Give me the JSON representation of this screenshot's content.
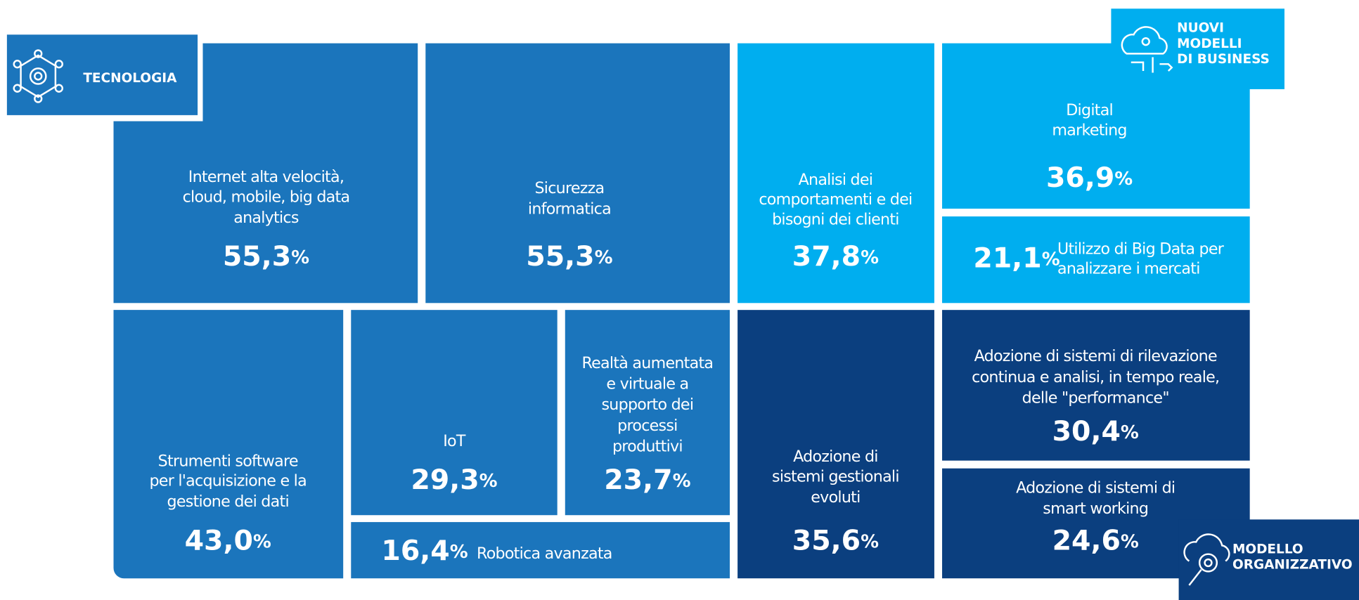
{
  "badges": [
    {
      "lines": [
        "TECNOLOGIA"
      ]
    },
    {
      "lines": [
        "NUOVI",
        "MODELLI",
        "DI BUSINESS"
      ]
    },
    {
      "lines": [
        "MODELLO",
        "ORGANIZZATIVO"
      ]
    }
  ],
  "tiles": [
    {
      "label": [
        "Internet alta velocità,",
        "cloud, mobile, big data",
        "analytics"
      ],
      "value": "55,3",
      "unit": "%"
    },
    {
      "label": [
        "Sicurezza",
        "informatica"
      ],
      "value": "55,3",
      "unit": "%"
    },
    {
      "label": [
        "Analisi dei",
        "comportamenti e dei",
        "bisogni dei clienti"
      ],
      "value": "37,8",
      "unit": "%"
    },
    {
      "label": [
        "Digital",
        "marketing"
      ],
      "value": "36,9",
      "unit": "%"
    },
    {
      "label": [
        "Utilizzo di Big Data per",
        "analizzare i mercati"
      ],
      "value": "21,1",
      "unit": "%"
    },
    {
      "label": [
        "Strumenti software",
        "per l'acquisizione e la",
        "gestione dei dati"
      ],
      "value": "43,0",
      "unit": "%"
    },
    {
      "label": [
        "IoT"
      ],
      "value": "29,3",
      "unit": "%"
    },
    {
      "label": [
        "Realtà aumentata",
        "e virtuale a",
        "supporto dei",
        "processi",
        "produttivi"
      ],
      "value": "23,7",
      "unit": "%"
    },
    {
      "label": [
        "Robotica avanzata"
      ],
      "value": "16,4",
      "unit": "%"
    },
    {
      "label": [
        "Adozione di",
        "sistemi gestionali",
        "evoluti"
      ],
      "value": "35,6",
      "unit": "%"
    },
    {
      "label": [
        "Adozione di sistemi di rilevazione",
        "continua e analisi, in tempo reale,",
        "delle \"performance\""
      ],
      "value": "30,4",
      "unit": "%"
    },
    {
      "label": [
        "Adozione di sistemi di",
        "smart working"
      ],
      "value": "24,6",
      "unit": "%"
    }
  ]
}
